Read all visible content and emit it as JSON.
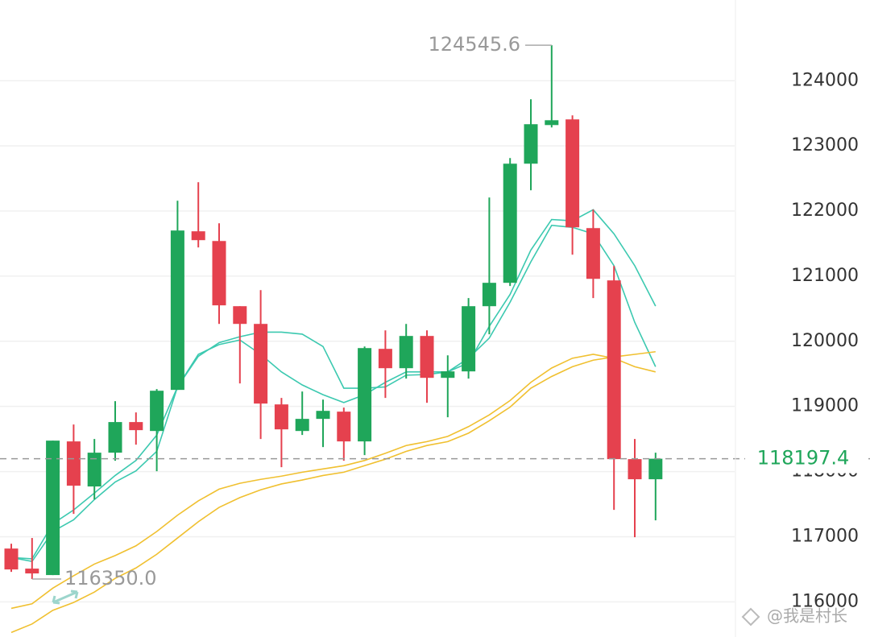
{
  "chart_data": {
    "type": "candlestick",
    "up_color": "#1fa65a",
    "down_color": "#e5414e",
    "open": [
      116818,
      116510,
      116411,
      118463,
      117771,
      118290,
      118760,
      118623,
      119254,
      121689,
      121540,
      120539,
      120267,
      119031,
      118623,
      118809,
      118920,
      118463,
      119884,
      119587,
      120082,
      119439,
      119538,
      120539,
      120898,
      122727,
      123320,
      123407,
      121738,
      120935,
      118191,
      117882
    ],
    "high": [
      116892,
      116980,
      118475,
      118722,
      118500,
      119081,
      118908,
      119266,
      122158,
      122443,
      121812,
      120539,
      120786,
      119130,
      119229,
      119105,
      118982,
      119921,
      120168,
      120267,
      120168,
      119785,
      120663,
      122208,
      122814,
      123716,
      124545.6,
      123469,
      122022,
      121157,
      118500,
      118290
    ],
    "low": [
      116460,
      116350,
      116411,
      117350,
      117573,
      118166,
      118413,
      118005,
      119254,
      121441,
      120267,
      119353,
      118500,
      118067,
      118562,
      118376,
      118166,
      118253,
      119130,
      119427,
      119056,
      118834,
      119427,
      120107,
      120849,
      122319,
      123283,
      121330,
      120663,
      117412,
      116992,
      117251
    ],
    "close": [
      116497,
      116436,
      118475,
      117783,
      118290,
      118760,
      118636,
      119241,
      121701,
      121553,
      120552,
      120267,
      119044,
      118648,
      118809,
      118932,
      118463,
      119896,
      119587,
      120082,
      119439,
      119538,
      120539,
      120898,
      122727,
      123333,
      123394,
      121750,
      120959,
      118191,
      117882,
      118197.4
    ],
    "lines": [
      {
        "color": "#3cc9b0",
        "values": [
          116680,
          116620,
          117080,
          117260,
          117570,
          117840,
          118010,
          118310,
          119300,
          119800,
          119950,
          120020,
          119800,
          119530,
          119330,
          119180,
          119060,
          119180,
          119370,
          119530,
          119530,
          119530,
          119740,
          120050,
          120600,
          121220,
          121780,
          121750,
          121650,
          121160,
          120290,
          119610
        ]
      },
      {
        "color": "#3cc9b0",
        "values": [
          116680,
          116660,
          117200,
          117410,
          117670,
          117940,
          118170,
          118560,
          119300,
          119770,
          119980,
          120070,
          120140,
          120140,
          120110,
          119920,
          119280,
          119280,
          119300,
          119480,
          119490,
          119530,
          119670,
          120230,
          120720,
          121400,
          121870,
          121850,
          122020,
          121650,
          121160,
          120540
        ]
      },
      {
        "color": "#f0c030",
        "values": [
          115900,
          115970,
          116210,
          116400,
          116580,
          116710,
          116860,
          117080,
          117330,
          117550,
          117730,
          117820,
          117880,
          117930,
          117990,
          118040,
          118090,
          118170,
          118280,
          118400,
          118460,
          118540,
          118690,
          118870,
          119090,
          119370,
          119590,
          119740,
          119800,
          119740,
          119610,
          119530
        ]
      },
      {
        "color": "#f0c030",
        "values": [
          115530,
          115660,
          115870,
          115990,
          116150,
          116360,
          116520,
          116730,
          116980,
          117230,
          117450,
          117600,
          117720,
          117810,
          117870,
          117940,
          117990,
          118090,
          118190,
          118310,
          118400,
          118460,
          118590,
          118780,
          118990,
          119280,
          119460,
          119610,
          119710,
          119760,
          119800,
          119840
        ]
      }
    ],
    "ylim": [
      115460,
      125240
    ],
    "yticks": [
      116000,
      117000,
      118000,
      119000,
      120000,
      121000,
      122000,
      123000,
      124000
    ],
    "grid": true,
    "max_marker": 124545.6,
    "min_marker": {
      "value": 116350,
      "label": "116350.0"
    },
    "last_price": 118197.4,
    "last_price_color": "#1fa65a",
    "watermark": "@我是村长"
  }
}
